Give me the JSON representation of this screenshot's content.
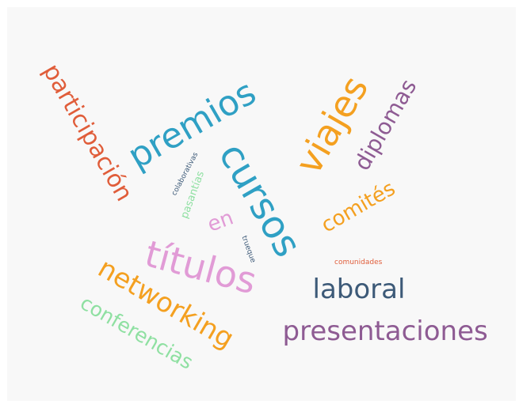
{
  "word_cloud": {
    "words": [
      {
        "text": "participación",
        "color": "#e05d3a"
      },
      {
        "text": "premios",
        "color": "#2fa0c4"
      },
      {
        "text": "cursos",
        "color": "#2fa0c4"
      },
      {
        "text": "viajes",
        "color": "#f4a020"
      },
      {
        "text": "diplomas",
        "color": "#8e5b93"
      },
      {
        "text": "colaborativas",
        "color": "#3d5a78"
      },
      {
        "text": "pasantías",
        "color": "#8fe0a2"
      },
      {
        "text": "en",
        "color": "#e19bd6"
      },
      {
        "text": "comités",
        "color": "#f4a020"
      },
      {
        "text": "títulos",
        "color": "#e19bd6"
      },
      {
        "text": "trueque",
        "color": "#3d5a78"
      },
      {
        "text": "comunidades",
        "color": "#e05d3a"
      },
      {
        "text": "networking",
        "color": "#f4a020"
      },
      {
        "text": "laboral",
        "color": "#3d5a78"
      },
      {
        "text": "conferencias",
        "color": "#8fe0a2"
      },
      {
        "text": "presentaciones",
        "color": "#8e5b93"
      }
    ]
  }
}
